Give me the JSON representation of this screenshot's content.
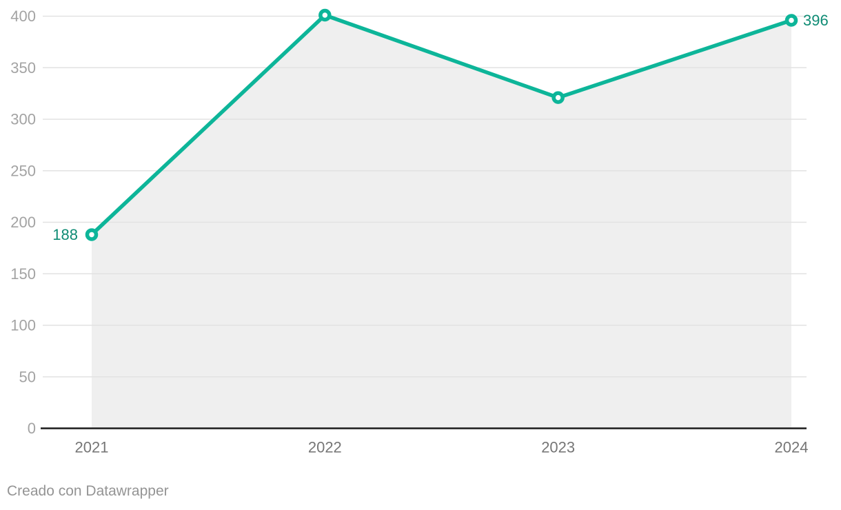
{
  "footer": {
    "attribution": "Creado con Datawrapper"
  },
  "chart_data": {
    "type": "line",
    "title": "",
    "xlabel": "",
    "ylabel": "",
    "categories": [
      "2021",
      "2022",
      "2023",
      "2024"
    ],
    "values": [
      188,
      401,
      321,
      396
    ],
    "point_labels": [
      {
        "index": 0,
        "text": "188",
        "side": "left"
      },
      {
        "index": 3,
        "text": "396",
        "side": "right"
      }
    ],
    "ylim": [
      0,
      400
    ],
    "yticks": [
      0,
      50,
      100,
      150,
      200,
      250,
      300,
      350,
      400
    ],
    "ytick_step": 50,
    "grid": true,
    "area_fill": true,
    "legend": "none",
    "colors": {
      "line": "#0db599",
      "point_fill": "#ffffff",
      "point_label": "#0e8b74",
      "area": "#efefef",
      "gridline": "#e2e2e2",
      "axis_line": "#1a1a1a",
      "y_tick_label": "#a3a3a3",
      "x_tick_label": "#767676",
      "footer_text": "#949494",
      "background": "#ffffff"
    }
  }
}
